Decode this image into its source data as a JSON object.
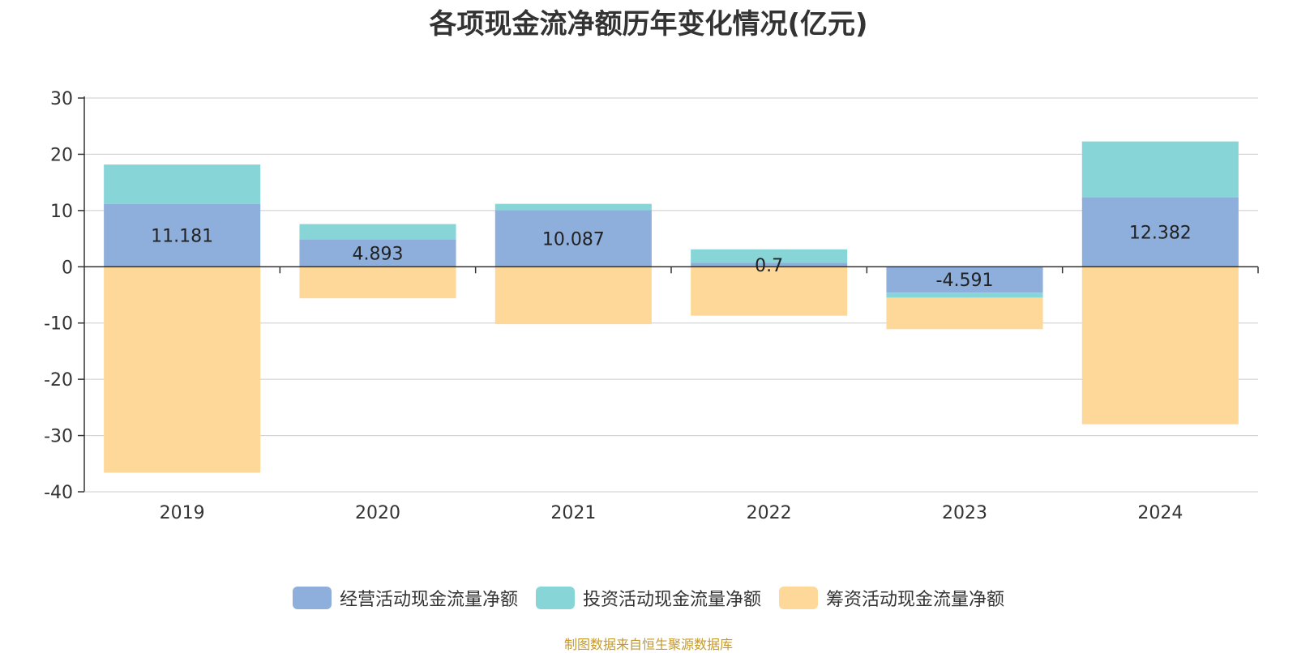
{
  "chart_data": {
    "type": "bar",
    "stacked": true,
    "title": "各项现金流净额历年变化情况(亿元)",
    "categories": [
      "2019",
      "2020",
      "2021",
      "2022",
      "2023",
      "2024"
    ],
    "ylim": [
      -40,
      30
    ],
    "yticks": [
      30,
      20,
      10,
      0,
      -10,
      -20,
      -30,
      -40
    ],
    "grid": true,
    "legend_position": "bottom",
    "series": [
      {
        "name": "经营活动现金流量净额",
        "color": "#8eaedb",
        "values": [
          11.181,
          4.893,
          10.087,
          0.7,
          -4.591,
          12.382
        ],
        "labels": [
          "11.181",
          "4.893",
          "10.087",
          "0.7",
          "-4.591",
          "12.382"
        ]
      },
      {
        "name": "投资活动现金流量净额",
        "color": "#88d5d8",
        "values": [
          7.0,
          2.7,
          1.1,
          2.4,
          -0.9,
          9.9
        ]
      },
      {
        "name": "筹资活动现金流量净额",
        "color": "#fed899",
        "values": [
          -36.6,
          -5.6,
          -10.2,
          -8.7,
          -5.6,
          -28.0
        ]
      }
    ]
  },
  "source_note": "制图数据来自恒生聚源数据库"
}
